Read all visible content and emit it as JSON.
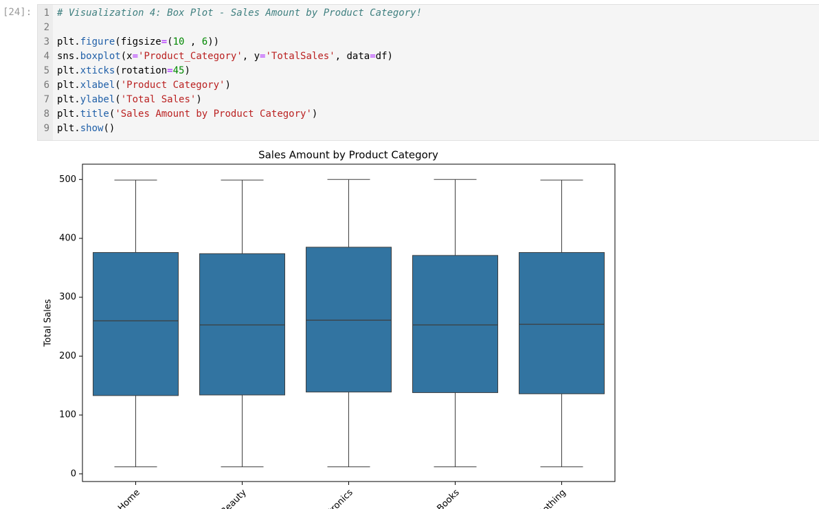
{
  "cell": {
    "prompt": "[24]:",
    "lines": [
      {
        "number": 1,
        "tokens": [
          {
            "text": "# Visualization 4: Box Plot - Sales Amount by Product Category!",
            "color": "#408080",
            "style": "italic"
          }
        ]
      },
      {
        "number": 2,
        "tokens": []
      },
      {
        "number": 3,
        "tokens": [
          {
            "text": "plt.",
            "color": "#000000"
          },
          {
            "text": "figure",
            "color": "#1f5fa8"
          },
          {
            "text": "(figsize",
            "color": "#000000"
          },
          {
            "text": "=",
            "color": "#aa22ff"
          },
          {
            "text": "(",
            "color": "#000000"
          },
          {
            "text": "10",
            "color": "#008800"
          },
          {
            "text": " , ",
            "color": "#000000"
          },
          {
            "text": "6",
            "color": "#008800"
          },
          {
            "text": "))",
            "color": "#000000"
          }
        ]
      },
      {
        "number": 4,
        "tokens": [
          {
            "text": "sns.",
            "color": "#000000"
          },
          {
            "text": "boxplot",
            "color": "#1f5fa8"
          },
          {
            "text": "(x",
            "color": "#000000"
          },
          {
            "text": "=",
            "color": "#aa22ff"
          },
          {
            "text": "'Product_Category'",
            "color": "#ba2121"
          },
          {
            "text": ", y",
            "color": "#000000"
          },
          {
            "text": "=",
            "color": "#aa22ff"
          },
          {
            "text": "'TotalSales'",
            "color": "#ba2121"
          },
          {
            "text": ", data",
            "color": "#000000"
          },
          {
            "text": "=",
            "color": "#aa22ff"
          },
          {
            "text": "df)",
            "color": "#000000"
          }
        ]
      },
      {
        "number": 5,
        "tokens": [
          {
            "text": "plt.",
            "color": "#000000"
          },
          {
            "text": "xticks",
            "color": "#1f5fa8"
          },
          {
            "text": "(rotation",
            "color": "#000000"
          },
          {
            "text": "=",
            "color": "#aa22ff"
          },
          {
            "text": "45",
            "color": "#008800"
          },
          {
            "text": ")",
            "color": "#000000"
          }
        ]
      },
      {
        "number": 6,
        "tokens": [
          {
            "text": "plt.",
            "color": "#000000"
          },
          {
            "text": "xlabel",
            "color": "#1f5fa8"
          },
          {
            "text": "(",
            "color": "#000000"
          },
          {
            "text": "'Product Category'",
            "color": "#ba2121"
          },
          {
            "text": ")",
            "color": "#000000"
          }
        ]
      },
      {
        "number": 7,
        "tokens": [
          {
            "text": "plt.",
            "color": "#000000"
          },
          {
            "text": "ylabel",
            "color": "#1f5fa8"
          },
          {
            "text": "(",
            "color": "#000000"
          },
          {
            "text": "'Total Sales'",
            "color": "#ba2121"
          },
          {
            "text": ")",
            "color": "#000000"
          }
        ]
      },
      {
        "number": 8,
        "tokens": [
          {
            "text": "plt.",
            "color": "#000000"
          },
          {
            "text": "title",
            "color": "#1f5fa8"
          },
          {
            "text": "(",
            "color": "#000000"
          },
          {
            "text": "'Sales Amount by Product Category'",
            "color": "#ba2121"
          },
          {
            "text": ")",
            "color": "#000000"
          }
        ]
      },
      {
        "number": 9,
        "tokens": [
          {
            "text": "plt.",
            "color": "#000000"
          },
          {
            "text": "show",
            "color": "#1f5fa8"
          },
          {
            "text": "()",
            "color": "#000000"
          }
        ]
      }
    ]
  },
  "chart_data": {
    "type": "box",
    "title": "Sales Amount by Product Category",
    "y_label": "Total Sales",
    "categories": [
      "Home",
      "Beauty",
      "Electronics",
      "Books",
      "Clothing"
    ],
    "min": [
      12,
      12,
      12,
      12,
      12
    ],
    "q1": [
      133,
      134,
      139,
      138,
      136
    ],
    "median": [
      260,
      253,
      261,
      253,
      254
    ],
    "q3": [
      376,
      374,
      385,
      371,
      376
    ],
    "max": [
      499,
      499,
      500,
      500,
      499
    ],
    "color": "#3274a1",
    "line_color": "#3d3d3d",
    "ylim": [
      -13,
      526
    ],
    "yticks": [
      0,
      100,
      200,
      300,
      400,
      500
    ]
  }
}
